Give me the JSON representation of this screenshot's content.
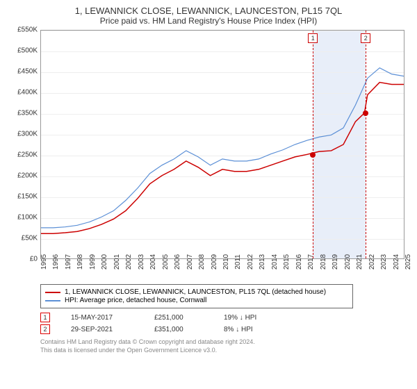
{
  "title": "1, LEWANNICK CLOSE, LEWANNICK, LAUNCESTON, PL15 7QL",
  "subtitle": "Price paid vs. HM Land Registry's House Price Index (HPI)",
  "chart": {
    "type": "line",
    "ylim": [
      0,
      550000
    ],
    "ytick_step": 50000,
    "yticks": [
      "£0",
      "£50K",
      "£100K",
      "£150K",
      "£200K",
      "£250K",
      "£300K",
      "£350K",
      "£400K",
      "£450K",
      "£500K",
      "£550K"
    ],
    "xlim": [
      1995,
      2025
    ],
    "xticks": [
      "1995",
      "1996",
      "1997",
      "1998",
      "1999",
      "2000",
      "2001",
      "2002",
      "2003",
      "2004",
      "2005",
      "2006",
      "2007",
      "2008",
      "2009",
      "2010",
      "2011",
      "2012",
      "2013",
      "2014",
      "2015",
      "2016",
      "2017",
      "2018",
      "2019",
      "2020",
      "2021",
      "2022",
      "2023",
      "2024",
      "2025"
    ],
    "background_color": "#ffffff",
    "grid_color": "#eeeeee",
    "series": [
      {
        "name": "property",
        "label": "1, LEWANNICK CLOSE, LEWANNICK, LAUNCESTON, PL15 7QL (detached house)",
        "color": "#cc0000",
        "line_width": 1.5,
        "points": [
          [
            1995,
            60000
          ],
          [
            1996,
            60000
          ],
          [
            1997,
            62000
          ],
          [
            1998,
            65000
          ],
          [
            1999,
            72000
          ],
          [
            2000,
            82000
          ],
          [
            2001,
            95000
          ],
          [
            2002,
            115000
          ],
          [
            2003,
            145000
          ],
          [
            2004,
            180000
          ],
          [
            2005,
            200000
          ],
          [
            2006,
            215000
          ],
          [
            2007,
            235000
          ],
          [
            2008,
            220000
          ],
          [
            2009,
            200000
          ],
          [
            2010,
            215000
          ],
          [
            2011,
            210000
          ],
          [
            2012,
            210000
          ],
          [
            2013,
            215000
          ],
          [
            2014,
            225000
          ],
          [
            2015,
            235000
          ],
          [
            2016,
            245000
          ],
          [
            2017,
            251000
          ],
          [
            2018,
            258000
          ],
          [
            2019,
            260000
          ],
          [
            2020,
            275000
          ],
          [
            2021,
            330000
          ],
          [
            2021.75,
            351000
          ],
          [
            2022,
            395000
          ],
          [
            2023,
            425000
          ],
          [
            2024,
            420000
          ],
          [
            2025,
            420000
          ]
        ]
      },
      {
        "name": "hpi",
        "label": "HPI: Average price, detached house, Cornwall",
        "color": "#5b8fd6",
        "line_width": 1.2,
        "points": [
          [
            1995,
            74000
          ],
          [
            1996,
            74000
          ],
          [
            1997,
            76000
          ],
          [
            1998,
            80000
          ],
          [
            1999,
            88000
          ],
          [
            2000,
            100000
          ],
          [
            2001,
            115000
          ],
          [
            2002,
            140000
          ],
          [
            2003,
            170000
          ],
          [
            2004,
            205000
          ],
          [
            2005,
            225000
          ],
          [
            2006,
            240000
          ],
          [
            2007,
            260000
          ],
          [
            2008,
            245000
          ],
          [
            2009,
            225000
          ],
          [
            2010,
            240000
          ],
          [
            2011,
            235000
          ],
          [
            2012,
            235000
          ],
          [
            2013,
            240000
          ],
          [
            2014,
            252000
          ],
          [
            2015,
            262000
          ],
          [
            2016,
            275000
          ],
          [
            2017,
            285000
          ],
          [
            2018,
            293000
          ],
          [
            2019,
            298000
          ],
          [
            2020,
            315000
          ],
          [
            2021,
            370000
          ],
          [
            2022,
            435000
          ],
          [
            2023,
            460000
          ],
          [
            2024,
            445000
          ],
          [
            2025,
            440000
          ]
        ]
      }
    ],
    "shaded_region": {
      "x_start": 2017.4,
      "x_end": 2021.75,
      "color": "#e8eef9"
    },
    "event_lines": [
      {
        "x": 2017.4,
        "label": "1",
        "color": "#cc0000"
      },
      {
        "x": 2021.75,
        "label": "2",
        "color": "#cc0000"
      }
    ],
    "markers": [
      {
        "x": 2017.4,
        "y": 251000,
        "color": "#cc0000"
      },
      {
        "x": 2021.75,
        "y": 351000,
        "color": "#cc0000"
      }
    ]
  },
  "legend": {
    "items": [
      {
        "color": "#cc0000",
        "label": "1, LEWANNICK CLOSE, LEWANNICK, LAUNCESTON, PL15 7QL (detached house)"
      },
      {
        "color": "#5b8fd6",
        "label": "HPI: Average price, detached house, Cornwall"
      }
    ]
  },
  "transactions": [
    {
      "n": "1",
      "date": "15-MAY-2017",
      "price": "£251,000",
      "diff": "19% ↓ HPI"
    },
    {
      "n": "2",
      "date": "29-SEP-2021",
      "price": "£351,000",
      "diff": "8% ↓ HPI"
    }
  ],
  "footer_line1": "Contains HM Land Registry data © Crown copyright and database right 2024.",
  "footer_line2": "This data is licensed under the Open Government Licence v3.0."
}
